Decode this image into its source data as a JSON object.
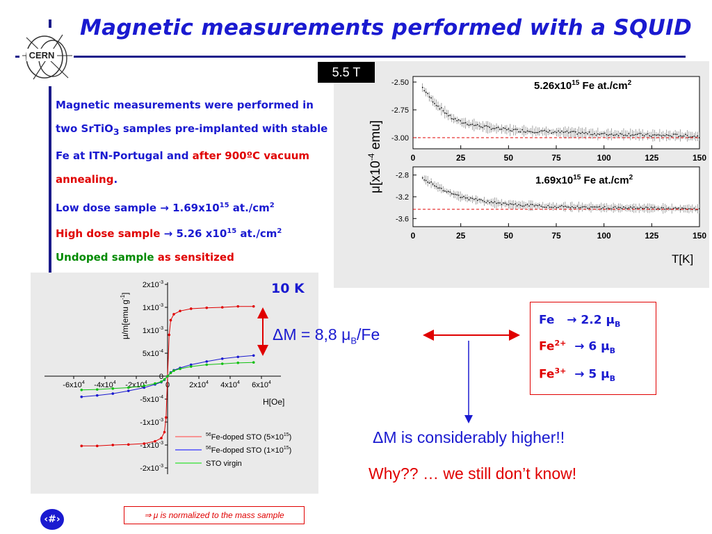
{
  "slide": {
    "title": "Magnetic measurements performed with a SQUID",
    "logo_text": "CERN",
    "page_marker": "‹#›"
  },
  "intro": {
    "p1_a": "Magnetic measurements were performed in two SrTiO",
    "p1_sub": "3",
    "p1_b": " samples pre-implanted with stable Fe at ITN-Portugal and ",
    "p1_red": "after 900ºC vacuum annealing",
    "p1_end": ".",
    "low_label": "Low dose sample",
    "low_arrow": "→",
    "low_value": "1.69x10",
    "low_exp": "15",
    "low_unit": " at./cm",
    "low_unit_exp": "2",
    "high_label": "High dose sample",
    "high_arrow": "→",
    "high_value": "5.26 x10",
    "high_exp": "15",
    "high_unit": " at./cm",
    "high_unit_exp": "2",
    "undoped_label": "Undoped sample",
    "undoped_tail": "as sensitized"
  },
  "mt_plot": {
    "field": "5.5 T",
    "ylabel": "μ[x10",
    "ylabel_exp": "-4",
    "ylabel_unit": " emu]",
    "xlabel": "T[K]",
    "top_label": "5.26x10",
    "top_label_exp": "15",
    "top_label_unit": " Fe at./cm",
    "top_label_unit_exp": "2",
    "bottom_label": "1.69x10",
    "bottom_label_exp": "15",
    "bottom_label_unit": " Fe at./cm",
    "bottom_label_unit_exp": "2",
    "top_yticks": [
      "-2.50",
      "-2.75",
      "-3.00"
    ],
    "bottom_yticks": [
      "-2.8",
      "-3.2",
      "-3.6"
    ],
    "xticks": [
      "0",
      "25",
      "50",
      "75",
      "100",
      "125",
      "150"
    ]
  },
  "hysteresis": {
    "temperature": "10 K",
    "ylabel": "μ/m[emu g",
    "ylabel_exp": "-1",
    "ylabel_end": "]",
    "xlabel": "H[Oe]",
    "ytick_base": "x10",
    "yticks": [
      {
        "m": "2",
        "e": "-3"
      },
      {
        "m": "1",
        "e": "-3"
      },
      {
        "m": "1",
        "e": "-3"
      },
      {
        "m": "5",
        "e": "-4"
      },
      {
        "m": "0",
        "e": ""
      },
      {
        "m": "-5",
        "e": "-4"
      },
      {
        "m": "-1",
        "e": "-3"
      },
      {
        "m": "-1",
        "e": "-3"
      },
      {
        "m": "-2",
        "e": "-3"
      }
    ],
    "xticks": [
      {
        "m": "-6",
        "e": "4"
      },
      {
        "m": "-4",
        "e": "4"
      },
      {
        "m": "-2",
        "e": "4"
      },
      {
        "m": "0",
        "e": ""
      },
      {
        "m": "2",
        "e": "4"
      },
      {
        "m": "4",
        "e": "4"
      },
      {
        "m": "6",
        "e": "4"
      }
    ],
    "legend": [
      {
        "sup": "56",
        "text": "Fe-doped STO (5×10",
        "exp": "15",
        "end": ")",
        "color": "#ff6060"
      },
      {
        "sup": "56",
        "text": "Fe-doped STO (1×10",
        "exp": "15",
        "end": ")",
        "color": "#3030ff"
      },
      {
        "sup": "",
        "text": "STO virgin",
        "exp": "",
        "end": "",
        "color": "#30e030"
      }
    ],
    "delta_m": "ΔM = 8,8  μ",
    "delta_m_sub": "B",
    "delta_m_end": "/Fe"
  },
  "moments": [
    {
      "ion": "Fe",
      "ion_sup": "",
      "arrow": "→",
      "value": "2.2 μ",
      "sub": "B"
    },
    {
      "ion": "Fe",
      "ion_sup": "2+",
      "arrow": "→",
      "value": "6 μ",
      "sub": "B"
    },
    {
      "ion": "Fe",
      "ion_sup": "3+",
      "arrow": "→",
      "value": "5 μ",
      "sub": "B"
    }
  ],
  "conclusion": {
    "line1": "ΔM is considerably higher!!",
    "line2": "Why?? … we still don’t know!"
  },
  "note": "⇒ μ is normalized to the mass sample",
  "chart_data": [
    {
      "type": "scatter",
      "xlabel": "T[K]",
      "ylabel": "μ[x10-4 emu]",
      "xlim": [
        0,
        150
      ],
      "ylim": [
        -3.1,
        -2.45
      ],
      "series": [
        {
          "name": "5.26x1015 Fe at./cm2",
          "x": [
            5,
            8,
            12,
            16,
            20,
            25,
            30,
            40,
            50,
            60,
            75,
            90,
            100,
            115,
            125,
            140,
            150
          ],
          "y": [
            -2.55,
            -2.62,
            -2.7,
            -2.76,
            -2.82,
            -2.86,
            -2.88,
            -2.91,
            -2.93,
            -2.94,
            -2.95,
            -2.96,
            -2.97,
            -2.97,
            -2.98,
            -2.98,
            -2.99
          ]
        }
      ],
      "reference": -3.0
    },
    {
      "type": "scatter",
      "xlabel": "T[K]",
      "ylabel": "μ[x10-4 emu]",
      "xlim": [
        0,
        150
      ],
      "ylim": [
        -3.75,
        -2.65
      ],
      "series": [
        {
          "name": "1.69x1015 Fe at./cm2",
          "x": [
            5,
            8,
            12,
            16,
            20,
            25,
            30,
            40,
            50,
            60,
            75,
            90,
            100,
            115,
            125,
            140,
            150
          ],
          "y": [
            -2.85,
            -2.92,
            -3.0,
            -3.07,
            -3.14,
            -3.2,
            -3.24,
            -3.3,
            -3.34,
            -3.36,
            -3.38,
            -3.39,
            -3.4,
            -3.41,
            -3.41,
            -3.42,
            -3.42
          ]
        }
      ],
      "reference": -3.43
    },
    {
      "type": "line",
      "xlabel": "H[Oe]",
      "ylabel": "μ/m[emu g-1]",
      "xlim": [
        -60000,
        60000
      ],
      "ylim": [
        -0.0022,
        0.0022
      ],
      "series": [
        {
          "name": "56Fe-doped STO (5×1015)",
          "x": [
            -55000,
            -45000,
            -35000,
            -25000,
            -15000,
            -8000,
            -4000,
            -2000,
            -1000,
            0,
            1000,
            2000,
            4000,
            8000,
            15000,
            25000,
            35000,
            45000,
            55000
          ],
          "y": [
            -0.00152,
            -0.00152,
            -0.0015,
            -0.00149,
            -0.00147,
            -0.00142,
            -0.00135,
            -0.00122,
            -0.0009,
            0,
            0.0009,
            0.00122,
            0.00135,
            0.00142,
            0.00147,
            0.00149,
            0.0015,
            0.00152,
            0.00152
          ]
        },
        {
          "name": "56Fe-doped STO (1×1015)",
          "x": [
            -55000,
            -45000,
            -35000,
            -25000,
            -15000,
            -8000,
            -4000,
            -2000,
            0,
            2000,
            4000,
            8000,
            15000,
            25000,
            35000,
            45000,
            55000
          ],
          "y": [
            -0.00045,
            -0.00042,
            -0.00038,
            -0.00032,
            -0.00025,
            -0.00018,
            -0.00013,
            -8e-05,
            0,
            8e-05,
            0.00013,
            0.00018,
            0.00025,
            0.00032,
            0.00038,
            0.00042,
            0.00045
          ]
        },
        {
          "name": "STO virgin",
          "x": [
            -55000,
            -45000,
            -35000,
            -25000,
            -15000,
            -8000,
            -4000,
            -2000,
            0,
            2000,
            4000,
            8000,
            15000,
            25000,
            35000,
            45000,
            55000
          ],
          "y": [
            -0.0003,
            -0.00029,
            -0.00027,
            -0.00025,
            -0.00021,
            -0.00016,
            -0.00012,
            -7e-05,
            0,
            7e-05,
            0.00012,
            0.00016,
            0.00021,
            0.00025,
            0.00027,
            0.00029,
            0.0003
          ]
        }
      ]
    }
  ]
}
